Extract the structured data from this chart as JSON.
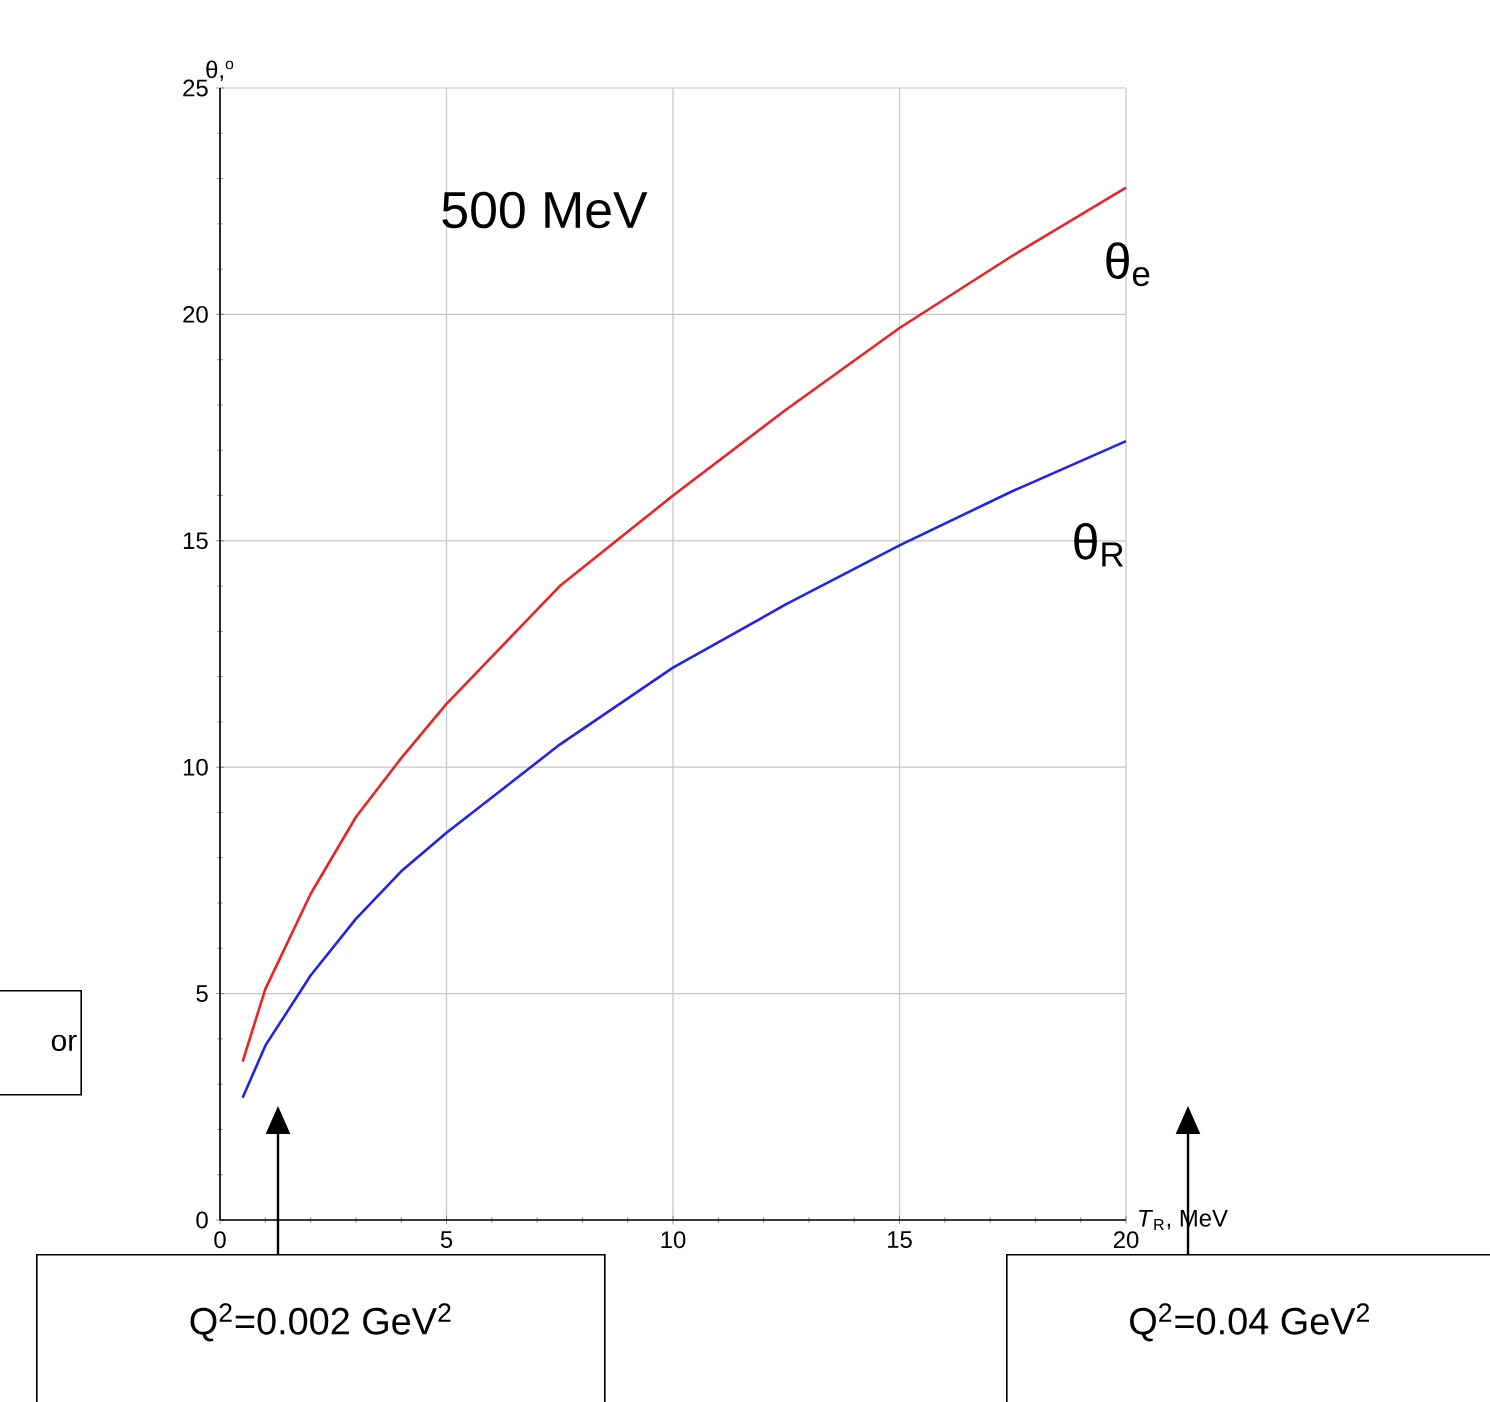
{
  "chart_data": {
    "type": "line",
    "title": "500 MeV",
    "xlabel": "*T*$_{R}$, MeV",
    "ylabel": "θ,$^{o}$",
    "x": [
      0.5,
      1,
      2,
      3,
      4,
      5,
      7.5,
      10,
      12.5,
      15,
      17.5,
      20
    ],
    "series": [
      {
        "name": "θ$_{e}$",
        "color": "#ee2222",
        "values": [
          3.5,
          5.1,
          7.2,
          8.9,
          10.2,
          11.4,
          14.0,
          16.0,
          17.9,
          19.7,
          21.3,
          22.8
        ]
      },
      {
        "name": "θ$_{R}$",
        "color": "#2222ee",
        "values": [
          2.7,
          3.85,
          5.4,
          6.65,
          7.7,
          8.55,
          10.5,
          12.2,
          13.6,
          14.9,
          16.1,
          17.2
        ]
      }
    ],
    "xlim": [
      0,
      20
    ],
    "ylim": [
      0,
      25
    ],
    "xticks": [
      0,
      5,
      10,
      15,
      20
    ],
    "yticks": [
      0,
      5,
      10,
      15,
      20,
      25
    ],
    "grid": true,
    "marker": "none",
    "line_style": "solid",
    "annotations": [
      "Q$^{2}$=0.002 GeV$^{2}$",
      "Q$^{2}$=0.04 GeV$^{2}$",
      "or"
    ]
  }
}
